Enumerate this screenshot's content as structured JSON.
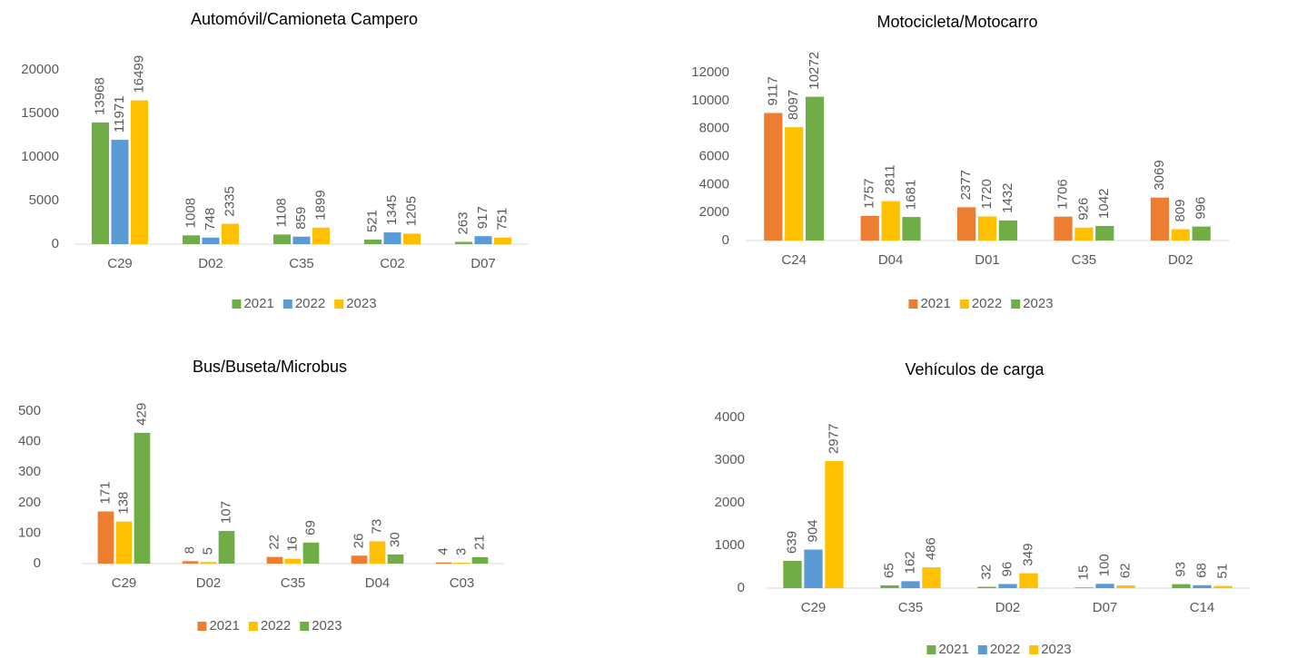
{
  "chart_data": [
    {
      "type": "bar",
      "title": "Automóvil/Camioneta Campero",
      "categories": [
        "C29",
        "D02",
        "C35",
        "C02",
        "D07"
      ],
      "series": [
        {
          "name": "2021",
          "color": "#70ad47",
          "values": [
            13968,
            1008,
            1108,
            521,
            263
          ]
        },
        {
          "name": "2022",
          "color": "#5b9bd5",
          "values": [
            11971,
            748,
            859,
            1345,
            917
          ]
        },
        {
          "name": "2023",
          "color": "#ffc000",
          "values": [
            16499,
            2335,
            1899,
            1205,
            751
          ]
        }
      ],
      "ylim": [
        0,
        20000
      ],
      "yticks": [
        0,
        5000,
        10000,
        15000,
        20000
      ],
      "legend": "bottom"
    },
    {
      "type": "bar",
      "title": "Motocicleta/Motocarro",
      "categories": [
        "C24",
        "D04",
        "D01",
        "C35",
        "D02"
      ],
      "series": [
        {
          "name": "2021",
          "color": "#ed7d31",
          "values": [
            9117,
            1757,
            2377,
            1706,
            3069
          ]
        },
        {
          "name": "2022",
          "color": "#ffc000",
          "values": [
            8097,
            2811,
            1720,
            926,
            809
          ]
        },
        {
          "name": "2023",
          "color": "#70ad47",
          "values": [
            10272,
            1681,
            1432,
            1042,
            996
          ]
        }
      ],
      "ylim": [
        0,
        12000
      ],
      "yticks": [
        0,
        2000,
        4000,
        6000,
        8000,
        10000,
        12000
      ],
      "legend": "bottom"
    },
    {
      "type": "bar",
      "title": "Bus/Buseta/Microbus",
      "categories": [
        "C29",
        "D02",
        "C35",
        "D04",
        "C03"
      ],
      "series": [
        {
          "name": "2021",
          "color": "#ed7d31",
          "values": [
            171,
            8,
            22,
            26,
            4
          ]
        },
        {
          "name": "2022",
          "color": "#ffc000",
          "values": [
            138,
            5,
            16,
            73,
            3
          ]
        },
        {
          "name": "2023",
          "color": "#70ad47",
          "values": [
            429,
            107,
            69,
            30,
            21
          ]
        }
      ],
      "ylim": [
        0,
        500
      ],
      "yticks": [
        0,
        100,
        200,
        300,
        400,
        500
      ],
      "legend": "bottom"
    },
    {
      "type": "bar",
      "title": "Vehículos de carga",
      "categories": [
        "C29",
        "C35",
        "D02",
        "D07",
        "C14"
      ],
      "series": [
        {
          "name": "2021",
          "color": "#70ad47",
          "values": [
            639,
            65,
            32,
            15,
            93
          ]
        },
        {
          "name": "2022",
          "color": "#5b9bd5",
          "values": [
            904,
            162,
            96,
            100,
            68
          ]
        },
        {
          "name": "2023",
          "color": "#ffc000",
          "values": [
            2977,
            486,
            349,
            62,
            51
          ]
        }
      ],
      "ylim": [
        0,
        4000
      ],
      "yticks": [
        0,
        1000,
        2000,
        3000,
        4000
      ],
      "legend": "bottom"
    }
  ]
}
